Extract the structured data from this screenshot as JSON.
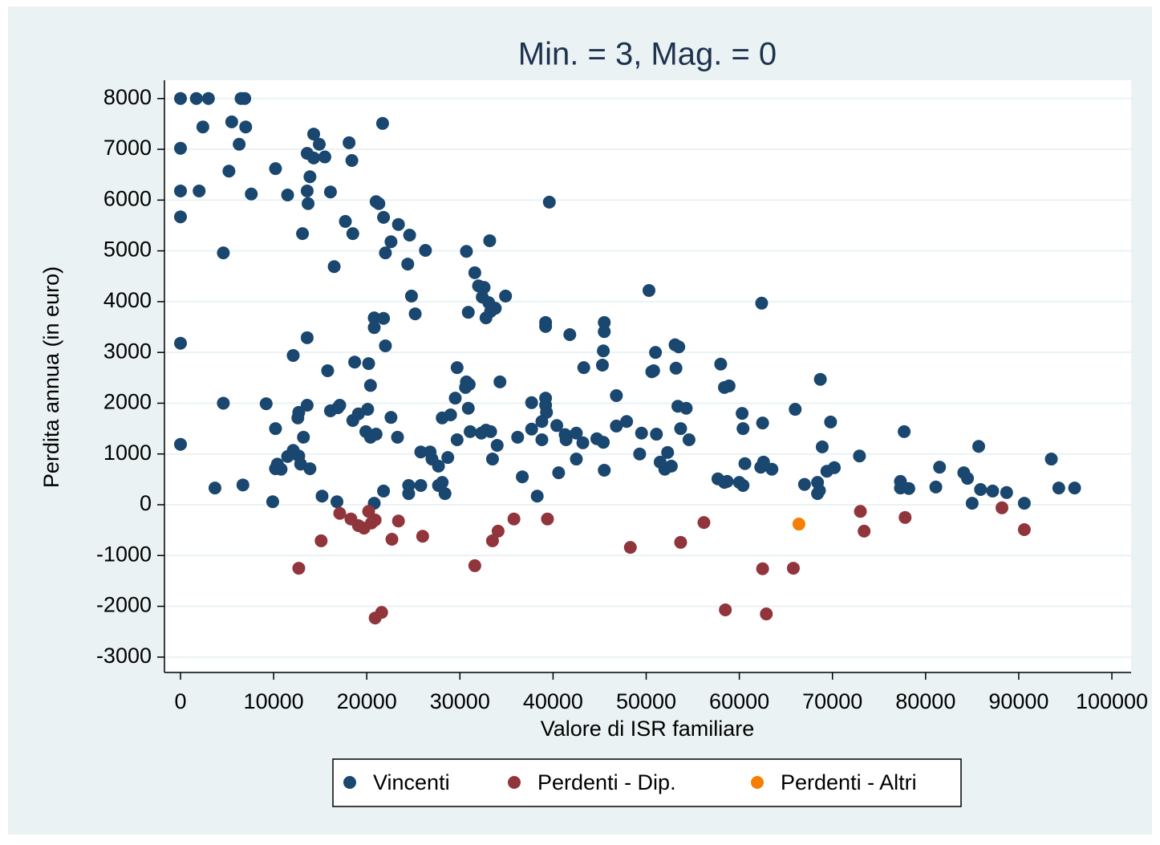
{
  "chart_data": {
    "type": "scatter",
    "title": "Min. = 3, Mag. = 0",
    "x_label": "Valore di ISR familiare",
    "y_label": "Perdita annua (in euro)",
    "xlim": [
      -1723,
      102067
    ],
    "ylim": [
      -3303,
      8360
    ],
    "xticks": [
      0,
      10000,
      20000,
      30000,
      40000,
      50000,
      60000,
      70000,
      80000,
      90000,
      100000
    ],
    "yticks": [
      -3000,
      -2000,
      -1000,
      0,
      1000,
      2000,
      3000,
      4000,
      5000,
      6000,
      7000,
      8000
    ],
    "grid": true,
    "legend_position": "bottom",
    "series": [
      {
        "name": "Vincenti",
        "color": "#1a476f",
        "x": [
          0,
          1700,
          3000,
          6500,
          6900,
          0,
          2400,
          5500,
          6300,
          7000,
          0,
          2000,
          5200,
          7600,
          0,
          4600,
          0,
          4600,
          0,
          3700,
          6700,
          10200,
          11500,
          13100,
          13600,
          14300,
          14900,
          14300,
          15500,
          13900,
          13600,
          13700,
          16100,
          16500,
          17700,
          18500,
          18100,
          18400,
          21700,
          21000,
          21800,
          22600,
          22000,
          23400,
          24600,
          24400,
          24800,
          25200,
          26300,
          21300,
          13600,
          12100,
          15800,
          18700,
          20200,
          20800,
          20800,
          21800,
          22000,
          20400,
          9200,
          10200,
          12700,
          12600,
          13600,
          16100,
          16900,
          17100,
          18500,
          19100,
          20100,
          19900,
          21000,
          20400,
          22600,
          23300,
          13200,
          12100,
          11500,
          12700,
          12900,
          13900,
          10200,
          10400,
          10800,
          9900,
          15200,
          16800,
          20800,
          21800,
          24500,
          24500,
          25800,
          25800,
          26800,
          27000,
          27700,
          28100,
          27700,
          28400,
          28100,
          29000,
          28700,
          29700,
          29500,
          29700,
          30700,
          30600,
          31000,
          30900,
          30700,
          30900,
          31100,
          31600,
          32000,
          32600,
          32400,
          33100,
          32800,
          33300,
          33800,
          33200,
          34900,
          32300,
          32800,
          33300,
          33500,
          34000,
          34300,
          36200,
          36700,
          37700,
          37700,
          38300,
          38800,
          39200,
          39300,
          39200,
          39200,
          39200,
          38800,
          39600,
          40400,
          40600,
          41300,
          41400,
          41800,
          42500,
          42500,
          43300,
          43200,
          44700,
          45400,
          45500,
          45500,
          45400,
          45300,
          45500,
          46800,
          46800,
          47900,
          49300,
          49500,
          50300,
          50600,
          50800,
          51000,
          51100,
          51500,
          52000,
          52300,
          52700,
          53100,
          53500,
          53200,
          53400,
          53700,
          54300,
          54600,
          58000,
          58400,
          58900,
          57700,
          58400,
          58700,
          60300,
          60400,
          60600,
          60000,
          60400,
          62400,
          62500,
          62600,
          62300,
          63500,
          66000,
          67000,
          68400,
          68400,
          68600,
          68700,
          68900,
          69400,
          69800,
          70200,
          72900,
          77300,
          77300,
          77700,
          78200,
          81100,
          81500,
          84100,
          84500,
          85000,
          85700,
          85900,
          87200,
          88700,
          90600,
          93500,
          94300,
          96000
        ],
        "values": [
          8000,
          8000,
          8000,
          8000,
          8000,
          7020,
          7440,
          7540,
          7100,
          7440,
          6180,
          6180,
          6570,
          6120,
          5670,
          4960,
          3180,
          2000,
          1190,
          330,
          390,
          6620,
          6100,
          5340,
          6920,
          7300,
          7100,
          6830,
          6850,
          6460,
          6180,
          5930,
          6160,
          4690,
          5580,
          5340,
          7130,
          6780,
          7510,
          5970,
          5660,
          5180,
          4960,
          5520,
          5310,
          4740,
          4110,
          3760,
          5010,
          5930,
          3290,
          2940,
          2640,
          2810,
          2780,
          3680,
          3490,
          3670,
          3130,
          2350,
          1990,
          1500,
          1820,
          1710,
          1960,
          1850,
          1910,
          1960,
          1660,
          1790,
          1880,
          1440,
          1390,
          1330,
          1720,
          1330,
          1330,
          1070,
          950,
          960,
          800,
          710,
          710,
          800,
          700,
          60,
          170,
          60,
          30,
          270,
          380,
          220,
          380,
          1040,
          1040,
          900,
          760,
          440,
          380,
          220,
          1710,
          1770,
          930,
          2700,
          2100,
          1280,
          2420,
          2310,
          2370,
          1900,
          4990,
          3790,
          1440,
          4570,
          4310,
          4280,
          4090,
          3980,
          3680,
          3810,
          3870,
          5200,
          4110,
          1410,
          1470,
          1440,
          900,
          1170,
          2420,
          1330,
          550,
          2010,
          1490,
          170,
          1640,
          1960,
          1820,
          2100,
          3590,
          3510,
          1280,
          5960,
          1560,
          630,
          1380,
          1280,
          3350,
          1410,
          900,
          2700,
          1220,
          1300,
          1230,
          3590,
          3410,
          3030,
          2750,
          680,
          2150,
          1550,
          1640,
          1000,
          1410,
          4220,
          2620,
          2640,
          3000,
          1390,
          840,
          700,
          1030,
          760,
          3150,
          3110,
          2690,
          1940,
          1500,
          1900,
          1280,
          2770,
          2310,
          2340,
          510,
          440,
          460,
          1800,
          1500,
          810,
          440,
          380,
          3970,
          1610,
          840,
          740,
          700,
          1880,
          400,
          440,
          220,
          280,
          2470,
          1140,
          660,
          1630,
          730,
          960,
          460,
          330,
          1440,
          320,
          350,
          740,
          630,
          520,
          30,
          1150,
          300,
          270,
          240,
          30,
          900,
          330,
          330
        ]
      },
      {
        "name": "Perdenti - Dip.",
        "color": "#90353b",
        "x": [
          12700,
          15100,
          17100,
          18300,
          19100,
          19700,
          20200,
          20500,
          20900,
          20900,
          21600,
          22700,
          23400,
          26000,
          31600,
          33500,
          34100,
          35800,
          39400,
          48300,
          53700,
          56200,
          58500,
          62500,
          62900,
          65800,
          73000,
          73400,
          77800,
          88200,
          90600
        ],
        "values": [
          -1250,
          -710,
          -170,
          -280,
          -410,
          -460,
          -130,
          -360,
          -300,
          -2230,
          -2120,
          -680,
          -320,
          -620,
          -1200,
          -710,
          -520,
          -280,
          -280,
          -840,
          -740,
          -350,
          -2070,
          -1260,
          -2150,
          -1250,
          -130,
          -520,
          -250,
          -60,
          -490
        ]
      },
      {
        "name": "Perdenti - Altri",
        "color": "#f57f00",
        "x": [
          66400
        ],
        "values": [
          -380
        ]
      }
    ]
  }
}
